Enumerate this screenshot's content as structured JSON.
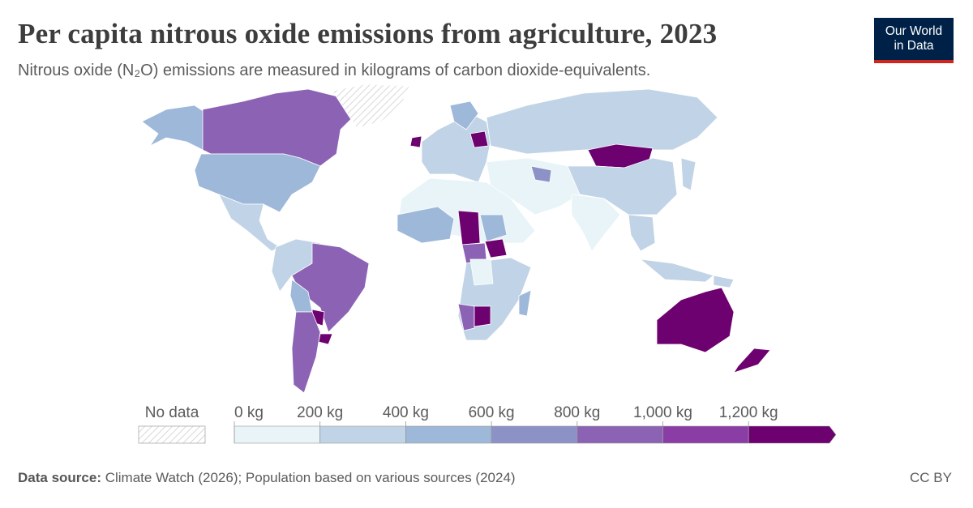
{
  "header": {
    "title": "Per capita nitrous oxide emissions from agriculture, 2023",
    "subtitle": "Nitrous oxide (N₂O) emissions are measured in kilograms of carbon dioxide-equivalents."
  },
  "logo": {
    "line1": "Our World",
    "line2": "in Data"
  },
  "legend": {
    "no_data": "No data",
    "ticks": [
      {
        "value": 0,
        "label": "0 kg"
      },
      {
        "value": 200,
        "label": "200 kg"
      },
      {
        "value": 400,
        "label": "400 kg"
      },
      {
        "value": 600,
        "label": "600 kg"
      },
      {
        "value": 800,
        "label": "800 kg"
      },
      {
        "value": 1000,
        "label": "1,000 kg"
      },
      {
        "value": 1200,
        "label": "1,200 kg"
      }
    ],
    "colors": [
      "#e8f4f7",
      "#c1d3e6",
      "#9db8d9",
      "#8c91c6",
      "#8c62b4",
      "#8b3da6",
      "#6d016f"
    ]
  },
  "footer": {
    "source_label": "Data source:",
    "source": "Climate Watch (2026); Population based on various sources (2024)",
    "license": "CC BY"
  }
}
